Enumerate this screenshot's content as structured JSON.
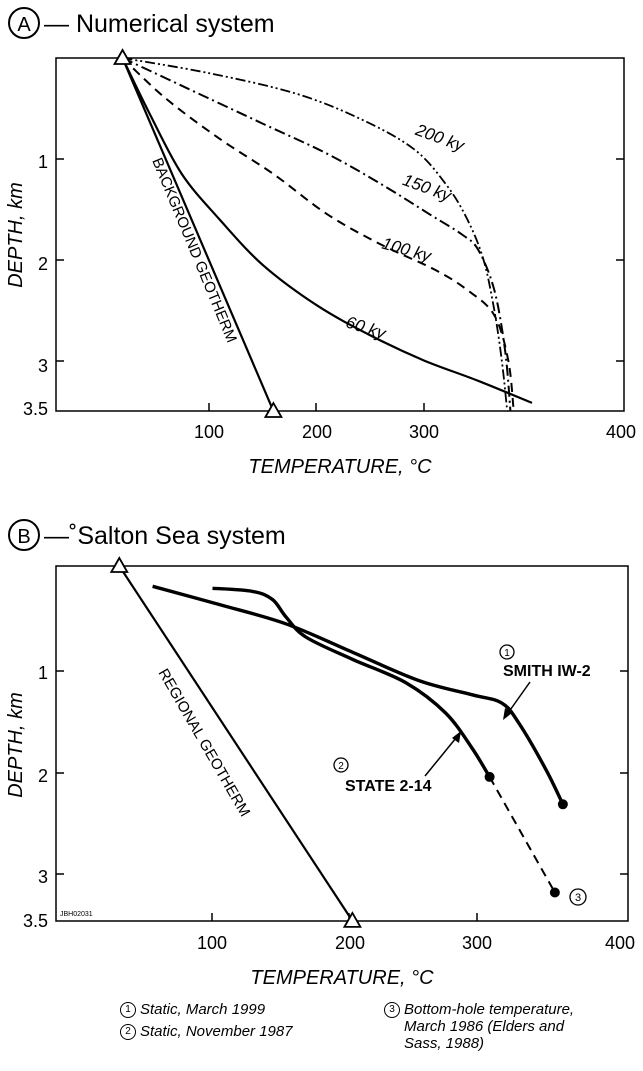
{
  "panels": {
    "a": {
      "letter": "A",
      "title": "— Numerical system",
      "x_label": "TEMPERATURE, °C",
      "y_label": "DEPTH, km",
      "x_ticks": [
        "100",
        "200",
        "300",
        "400"
      ],
      "y_ticks": [
        "1",
        "2",
        "3",
        "3.5"
      ],
      "geotherm_label": "BACKGROUND GEOTHERM",
      "curve_labels": [
        "200 ky",
        "150 ky",
        "100 ky",
        "60 ky"
      ]
    },
    "b": {
      "letter": "B",
      "title": "—˚Salton Sea system",
      "x_label": "TEMPERATURE, °C",
      "y_label": "DEPTH, km",
      "x_ticks": [
        "100",
        "200",
        "300",
        "400"
      ],
      "y_ticks": [
        "1",
        "2",
        "3",
        "3.5"
      ],
      "geotherm_label": "REGIONAL GEOTHERM",
      "well_1_num": "1",
      "well_1": "SMITH IW-2",
      "well_2_num": "2",
      "well_2": "STATE 2-14",
      "marker_3": "3",
      "figure_code": "JBH02031"
    }
  },
  "legend": [
    {
      "num": "1",
      "text": "Static, March 1999"
    },
    {
      "num": "2",
      "text": "Static, November 1987"
    },
    {
      "num": "3",
      "text": "Bottom-hole temperature, March 1986 (Elders and Sass, 1988)"
    }
  ],
  "chart_data": [
    {
      "type": "line",
      "panel": "A",
      "title": "Numerical system",
      "xlabel": "TEMPERATURE, °C",
      "ylabel": "DEPTH, km",
      "xlim": [
        0,
        400
      ],
      "ylim": [
        3.5,
        0
      ],
      "x_ticks": [
        100,
        200,
        300,
        400
      ],
      "y_ticks": [
        1,
        2,
        3,
        3.5
      ],
      "series": [
        {
          "name": "BACKGROUND GEOTHERM",
          "style": "solid",
          "x": [
            20,
            160
          ],
          "y": [
            0,
            3.5
          ],
          "markers": "triangle"
        },
        {
          "name": "60 ky",
          "style": "solid",
          "x": [
            20,
            45,
            75,
            110,
            150,
            200,
            250,
            300,
            350,
            400
          ],
          "y": [
            0,
            0.55,
            1.15,
            1.6,
            2.05,
            2.45,
            2.75,
            3.0,
            3.2,
            3.42
          ]
        },
        {
          "name": "100 ky",
          "style": "dashed",
          "x": [
            20,
            60,
            110,
            160,
            210,
            260,
            310,
            340,
            365,
            378,
            383
          ],
          "y": [
            0,
            0.4,
            0.8,
            1.15,
            1.55,
            1.85,
            2.1,
            2.3,
            2.55,
            3.0,
            3.5
          ]
        },
        {
          "name": "150 ky",
          "style": "dash-dot",
          "x": [
            20,
            80,
            150,
            210,
            260,
            305,
            335,
            350,
            365,
            375,
            380
          ],
          "y": [
            0,
            0.3,
            0.65,
            0.95,
            1.25,
            1.55,
            1.75,
            1.9,
            2.3,
            2.9,
            3.5
          ]
        },
        {
          "name": "200 ky",
          "style": "dash-dot-dot",
          "x": [
            20,
            100,
            180,
            240,
            290,
            320,
            340,
            355,
            365,
            372,
            377
          ],
          "y": [
            0,
            0.15,
            0.35,
            0.6,
            0.9,
            1.25,
            1.6,
            2.0,
            2.5,
            3.0,
            3.5
          ]
        }
      ]
    },
    {
      "type": "line",
      "panel": "B",
      "title": "Salton Sea system",
      "xlabel": "TEMPERATURE, °C",
      "ylabel": "DEPTH, km",
      "xlim": [
        0,
        400
      ],
      "ylim": [
        3.5,
        0
      ],
      "x_ticks": [
        100,
        200,
        300,
        400
      ],
      "y_ticks": [
        1,
        2,
        3,
        3.5
      ],
      "series": [
        {
          "name": "REGIONAL GEOTHERM",
          "style": "solid",
          "x": [
            25,
            200
          ],
          "y": [
            0,
            3.5
          ],
          "markers": "triangle"
        },
        {
          "name": "SMITH IW-2",
          "style": "solid-thick",
          "x": [
            50,
            100,
            150,
            200,
            250,
            290,
            312,
            325,
            345,
            358
          ],
          "y": [
            0.2,
            0.38,
            0.57,
            0.85,
            1.13,
            1.27,
            1.35,
            1.55,
            2.0,
            2.35
          ]
        },
        {
          "name": "STATE 2-14",
          "style": "solid-thick",
          "x": [
            95,
            125,
            140,
            150,
            165,
            200,
            240,
            270,
            290,
            303
          ],
          "y": [
            0.22,
            0.25,
            0.33,
            0.5,
            0.7,
            0.92,
            1.15,
            1.45,
            1.8,
            2.08
          ]
        },
        {
          "name": "Bottom-hole temperature",
          "style": "dashed",
          "x": [
            303,
            352
          ],
          "y": [
            2.08,
            3.22
          ]
        }
      ]
    }
  ]
}
